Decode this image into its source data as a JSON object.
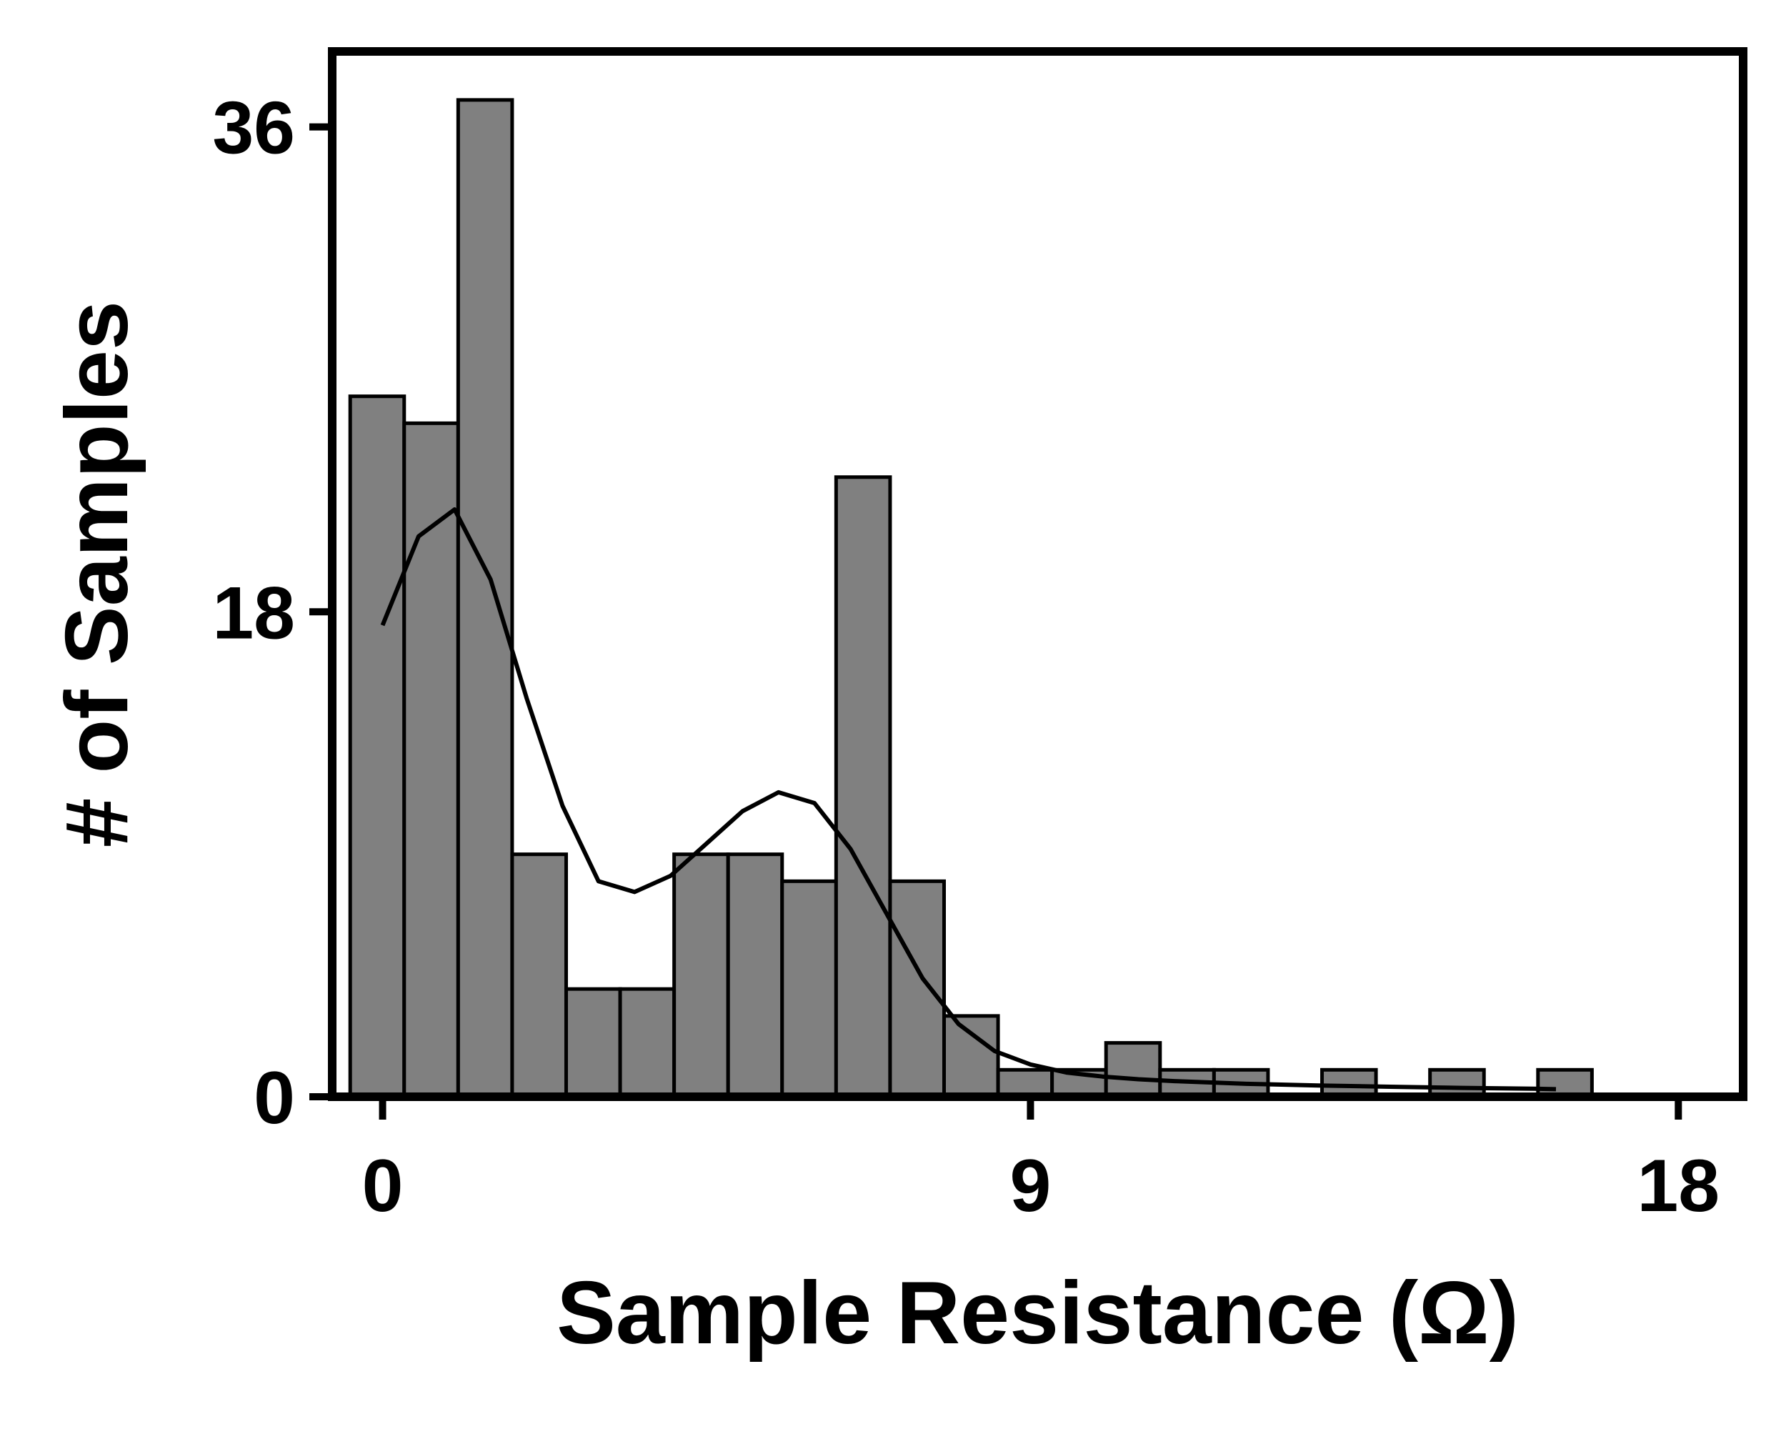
{
  "chart_data": {
    "type": "bar",
    "subtype": "histogram",
    "xlabel": "Sample Resistance (Ω)",
    "ylabel": "# of Samples",
    "xlim": [
      -0.7,
      18.9
    ],
    "ylim": [
      0,
      38.8
    ],
    "xticks": [
      0,
      9,
      18
    ],
    "xtick_labels": [
      "0",
      "9",
      "18"
    ],
    "yticks": [
      0,
      18,
      36
    ],
    "ytick_labels": [
      "0",
      "18",
      "36"
    ],
    "bin_edges": [
      -0.45,
      0.3,
      1.05,
      1.8,
      2.55,
      3.3,
      4.05,
      4.8,
      5.55,
      6.3,
      7.05,
      7.8,
      8.55,
      9.3,
      10.05,
      10.8,
      11.55,
      12.3,
      13.05,
      13.8,
      14.55,
      15.3,
      16.05,
      16.8
    ],
    "counts": [
      26,
      25,
      37,
      9,
      4,
      4,
      9,
      9,
      8,
      23,
      8,
      3,
      1,
      1,
      2,
      1,
      1,
      0,
      1,
      0,
      1,
      0,
      1
    ],
    "kde_curve": {
      "x": [
        0.0,
        0.5,
        1.0,
        1.5,
        2.0,
        2.5,
        3.0,
        3.5,
        4.0,
        4.5,
        5.0,
        5.5,
        6.0,
        6.5,
        7.0,
        7.5,
        8.0,
        8.5,
        9.0,
        9.5,
        10.0,
        10.5,
        11.0,
        12.0,
        13.0,
        14.0,
        15.0,
        16.0,
        16.3
      ],
      "y": [
        17.5,
        20.8,
        21.8,
        19.2,
        14.8,
        10.8,
        8.0,
        7.6,
        8.2,
        9.4,
        10.6,
        11.3,
        10.9,
        9.2,
        6.8,
        4.4,
        2.7,
        1.7,
        1.2,
        0.9,
        0.75,
        0.65,
        0.58,
        0.48,
        0.42,
        0.37,
        0.33,
        0.3,
        0.28
      ]
    },
    "bar_color": "#808080",
    "edge_color": "#000000",
    "line_color": "#000000",
    "grid": false,
    "legend": "none"
  }
}
